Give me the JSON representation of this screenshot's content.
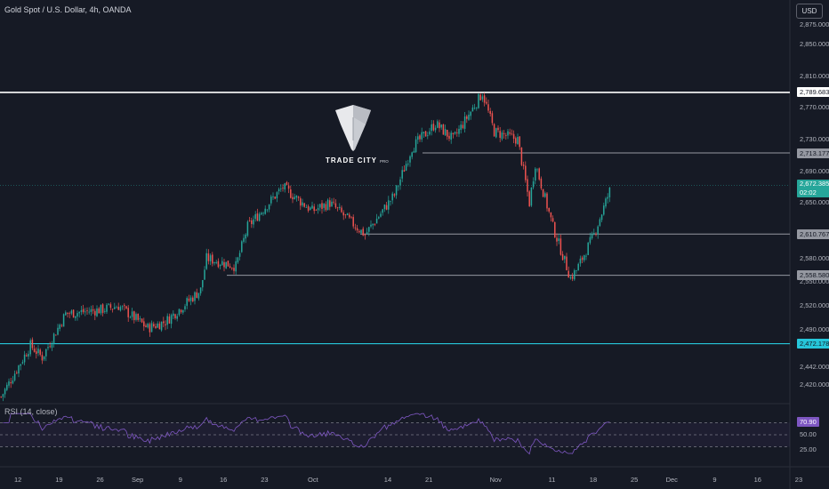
{
  "chart": {
    "title": "Gold Spot / U.S. Dollar, 4h, OANDA",
    "currency_button": "USD",
    "watermark": "TRADE CITY",
    "watermark_sub": "PRO",
    "colors": {
      "background": "#161a25",
      "up": "#26a69a",
      "down": "#ef5350",
      "rsi_line": "#7e57c2",
      "support_line_cyan": "#26c6da",
      "resistance_line_white": "#ffffff",
      "level_line_grey": "#9598a1"
    },
    "price_axis_labels": [
      "2,875.000",
      "2,850.000",
      "2,810.000",
      "2,770.000",
      "2,730.000",
      "2,690.000",
      "2,650.000",
      "2,580.000",
      "2,550.000",
      "2,520.000",
      "2,490.000",
      "2,442.000",
      "2,420.000"
    ],
    "level_tags": [
      {
        "label": "2,789.683",
        "style": "white"
      },
      {
        "label": "2,713.177",
        "style": "grey"
      },
      {
        "label": "2,610.767",
        "style": "grey"
      },
      {
        "label": "2,558.580",
        "style": "grey"
      },
      {
        "label": "2,472.178",
        "style": "cyan"
      }
    ],
    "last_price": "2,672.385",
    "countdown": "02:02",
    "time_axis_labels": [
      "12",
      "19",
      "26",
      "Sep",
      "9",
      "16",
      "23",
      "Oct",
      "14",
      "21",
      "Nov",
      "11",
      "18",
      "25",
      "Dec",
      "9",
      "16",
      "23"
    ]
  },
  "rsi": {
    "title": "RSI (14, close)",
    "value_tag": "70.90",
    "axis_labels": [
      "50.00",
      "25.00"
    ]
  },
  "chart_data": {
    "type": "candlestick",
    "title": "Gold Spot / U.S. Dollar, 4h, OANDA",
    "x_axis_ticks": [
      "12",
      "19",
      "26",
      "Sep",
      "9",
      "16",
      "23",
      "Oct",
      "14",
      "21",
      "Nov",
      "11",
      "18",
      "25",
      "Dec",
      "9",
      "16",
      "23"
    ],
    "y_unit": "USD",
    "horizontal_levels": [
      2789.683,
      2713.177,
      2610.767,
      2558.58,
      2472.178
    ],
    "last_price": 2672.385,
    "price_path_keypoints": [
      {
        "t": "Aug 09",
        "price": 2405
      },
      {
        "t": "Aug 14",
        "price": 2470
      },
      {
        "t": "Aug 16",
        "price": 2455
      },
      {
        "t": "Aug 20",
        "price": 2510
      },
      {
        "t": "Aug 26",
        "price": 2515
      },
      {
        "t": "Aug 29",
        "price": 2520
      },
      {
        "t": "Sep 03",
        "price": 2492
      },
      {
        "t": "Sep 06",
        "price": 2500
      },
      {
        "t": "Sep 12",
        "price": 2540
      },
      {
        "t": "Sep 13",
        "price": 2580
      },
      {
        "t": "Sep 18",
        "price": 2570
      },
      {
        "t": "Sep 20",
        "price": 2620
      },
      {
        "t": "Sep 26",
        "price": 2670
      },
      {
        "t": "Oct 01",
        "price": 2640
      },
      {
        "t": "Oct 04",
        "price": 2650
      },
      {
        "t": "Oct 10",
        "price": 2610
      },
      {
        "t": "Oct 15",
        "price": 2660
      },
      {
        "t": "Oct 18",
        "price": 2720
      },
      {
        "t": "Oct 22",
        "price": 2750
      },
      {
        "t": "Oct 25",
        "price": 2730
      },
      {
        "t": "Oct 30",
        "price": 2789
      },
      {
        "t": "Nov 01",
        "price": 2740
      },
      {
        "t": "Nov 05",
        "price": 2730
      },
      {
        "t": "Nov 07",
        "price": 2650
      },
      {
        "t": "Nov 08",
        "price": 2700
      },
      {
        "t": "Nov 11",
        "price": 2620
      },
      {
        "t": "Nov 14",
        "price": 2555
      },
      {
        "t": "Nov 15",
        "price": 2565
      },
      {
        "t": "Nov 18",
        "price": 2610
      },
      {
        "t": "Nov 21",
        "price": 2672
      }
    ],
    "rsi": {
      "title": "RSI (14, close)",
      "last": 70.9,
      "guides": [
        70,
        50,
        30
      ]
    }
  }
}
